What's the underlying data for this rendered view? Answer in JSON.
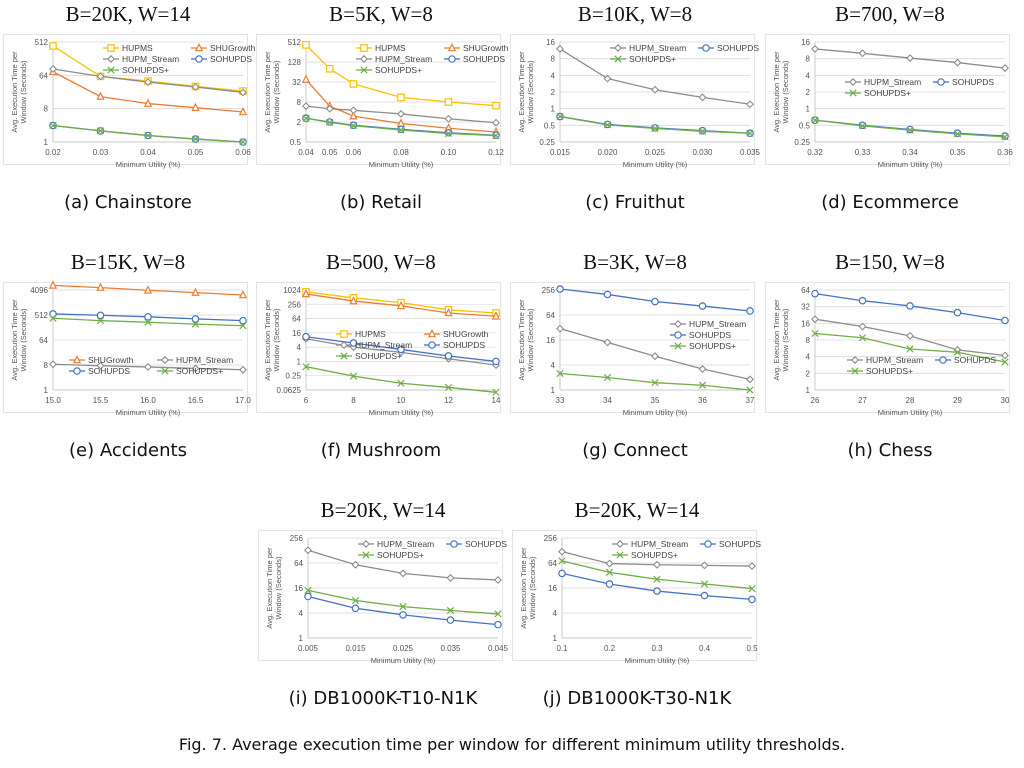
{
  "figure_caption": "Fig. 7.  Average execution time per window for different minimum utility thresholds.",
  "series_styles": {
    "HUPMS": {
      "color": "#FFC000",
      "marker": "square"
    },
    "SHUGrowth": {
      "color": "#ED7D31",
      "marker": "triangle"
    },
    "HUPM_Stream": {
      "color": "#8C8C8C",
      "marker": "diamond"
    },
    "SOHUPDS": {
      "color": "#4472C4",
      "marker": "circle"
    },
    "SOHUPDS+": {
      "color": "#70AD47",
      "marker": "x"
    }
  },
  "panels": [
    {
      "title": "B=20K, W=14",
      "caption": "(a) Chainstore"
    },
    {
      "title": "B=5K, W=8",
      "caption": "(b) Retail"
    },
    {
      "title": "B=10K, W=8",
      "caption": "(c) Fruithut"
    },
    {
      "title": "B=700, W=8",
      "caption": "(d) Ecommerce"
    },
    {
      "title": "B=15K, W=8",
      "caption": "(e) Accidents"
    },
    {
      "title": "B=500, W=8",
      "caption": "(f) Mushroom"
    },
    {
      "title": "B=3K, W=8",
      "caption": "(g) Connect"
    },
    {
      "title": "B=150, W=8",
      "caption": "(h) Chess"
    },
    {
      "title": "B=20K, W=14",
      "caption": "(i) DB1000K-T10-N1K"
    },
    {
      "title": "B=20K, W=14",
      "caption": "(j) DB1000K-T30-N1K"
    }
  ],
  "chart_data": [
    {
      "type": "line",
      "yscale": "log2",
      "xlabel": "Minimum Utility (%)",
      "ylabel": "Avg. Execution Time per Window (Seconds)",
      "categories": [
        "0.02",
        "0.03",
        "0.04",
        "0.05",
        "0.06"
      ],
      "yticks": [
        "1",
        "8",
        "64",
        "512"
      ],
      "ylim": [
        1,
        512
      ],
      "grid": true,
      "legend": {
        "placement": "top-right",
        "columns": 2,
        "order": [
          "HUPMS",
          "SHUGrowth",
          "HUPM_Stream",
          "SOHUPDS",
          "SOHUPDS+"
        ]
      },
      "series": [
        {
          "name": "HUPMS",
          "values": [
            400,
            60,
            45,
            32,
            24
          ]
        },
        {
          "name": "SHUGrowth",
          "values": [
            80,
            17,
            11,
            8.5,
            6.5
          ]
        },
        {
          "name": "HUPM_Stream",
          "values": [
            95,
            60,
            42,
            31,
            22
          ]
        },
        {
          "name": "SOHUPDS",
          "values": [
            2.8,
            2.0,
            1.5,
            1.2,
            1.0
          ]
        },
        {
          "name": "SOHUPDS+",
          "values": [
            2.8,
            2.0,
            1.5,
            1.2,
            1.0
          ]
        }
      ]
    },
    {
      "type": "line",
      "yscale": "log2",
      "xlabel": "Minimum Utility (%)",
      "ylabel": "Avg. Execution Time per Window (Seconds)",
      "categories": [
        "0.04",
        "0.05",
        "0.06",
        "0.08",
        "0.10",
        "0.12"
      ],
      "xvalues": [
        0.04,
        0.05,
        0.06,
        0.08,
        0.1,
        0.12
      ],
      "yticks": [
        "0.5",
        "2",
        "8",
        "32",
        "128",
        "512"
      ],
      "ylim": [
        0.5,
        512
      ],
      "grid": true,
      "legend": {
        "placement": "top-right",
        "columns": 2,
        "order": [
          "HUPMS",
          "SHUGrowth",
          "HUPM_Stream",
          "SOHUPDS",
          "SOHUPDS+"
        ]
      },
      "series": [
        {
          "name": "HUPMS",
          "values": [
            420,
            80,
            28,
            11,
            8,
            6.2
          ]
        },
        {
          "name": "SHUGrowth",
          "values": [
            38,
            6,
            3,
            1.8,
            1.3,
            1.0
          ]
        },
        {
          "name": "HUPM_Stream",
          "values": [
            6,
            5,
            4.5,
            3.5,
            2.5,
            1.9
          ]
        },
        {
          "name": "SOHUPDS",
          "values": [
            2.6,
            2.0,
            1.6,
            1.2,
            0.95,
            0.8
          ]
        },
        {
          "name": "SOHUPDS+",
          "values": [
            2.6,
            1.95,
            1.55,
            1.15,
            0.9,
            0.78
          ]
        }
      ]
    },
    {
      "type": "line",
      "yscale": "log2",
      "xlabel": "Minimum Utility (%)",
      "ylabel": "Avg. Execution Time per Window (Seconds)",
      "categories": [
        "0.015",
        "0.020",
        "0.025",
        "0.030",
        "0.035"
      ],
      "yticks": [
        "0.25",
        "0.5",
        "1",
        "2",
        "4",
        "8",
        "16"
      ],
      "ylim": [
        0.25,
        16
      ],
      "grid": true,
      "legend": {
        "placement": "top-right",
        "columns": 2,
        "order": [
          "HUPM_Stream",
          "SOHUPDS",
          "SOHUPDS+"
        ]
      },
      "series": [
        {
          "name": "HUPM_Stream",
          "values": [
            12,
            3.5,
            2.2,
            1.6,
            1.2
          ]
        },
        {
          "name": "SOHUPDS",
          "values": [
            0.72,
            0.52,
            0.45,
            0.4,
            0.36
          ]
        },
        {
          "name": "SOHUPDS+",
          "values": [
            0.72,
            0.51,
            0.44,
            0.39,
            0.36
          ]
        }
      ]
    },
    {
      "type": "line",
      "yscale": "log2",
      "xlabel": "Minimum Utility (%)",
      "ylabel": "Avg. Execution Time per Window (Seconds)",
      "categories": [
        "0.32",
        "0.33",
        "0.34",
        "0.35",
        "0.36"
      ],
      "yticks": [
        "0.25",
        "0.5",
        "1",
        "2",
        "4",
        "8",
        "16"
      ],
      "ylim": [
        0.25,
        16
      ],
      "grid": true,
      "legend": {
        "placement": "center",
        "columns": 2,
        "order": [
          "HUPM_Stream",
          "SOHUPDS",
          "SOHUPDS+"
        ]
      },
      "series": [
        {
          "name": "HUPM_Stream",
          "values": [
            12,
            10,
            8.2,
            6.8,
            5.4
          ]
        },
        {
          "name": "SOHUPDS",
          "values": [
            0.62,
            0.5,
            0.42,
            0.36,
            0.32
          ]
        },
        {
          "name": "SOHUPDS+",
          "values": [
            0.62,
            0.49,
            0.41,
            0.35,
            0.31
          ]
        }
      ]
    },
    {
      "type": "line",
      "yscale": "log2",
      "xlabel": "Minimum Utility (%)",
      "ylabel": "Avg. Execution Time per Window (Seconds)",
      "categories": [
        "15.0",
        "15.5",
        "16.0",
        "16.5",
        "17.0"
      ],
      "yticks": [
        "1",
        "8",
        "64",
        "512",
        "4096"
      ],
      "ylim": [
        1,
        4096
      ],
      "grid": true,
      "legend": {
        "placement": "bottom",
        "columns": 2,
        "order": [
          "SHUGrowth",
          "HUPM_Stream",
          "SOHUPDS",
          "SOHUPDS+"
        ]
      },
      "series": [
        {
          "name": "SHUGrowth",
          "values": [
            6000,
            5000,
            4000,
            3300,
            2700
          ]
        },
        {
          "name": "HUPM_Stream",
          "values": [
            8.5,
            7.5,
            6.8,
            6.0,
            5.4
          ]
        },
        {
          "name": "SOHUPDS",
          "values": [
            560,
            500,
            440,
            370,
            320
          ]
        },
        {
          "name": "SOHUPDS+",
          "values": [
            390,
            320,
            280,
            240,
            210
          ]
        }
      ]
    },
    {
      "type": "line",
      "yscale": "log2",
      "xlabel": "Minimum Utility (%)",
      "ylabel": "Avg. Execution Time per Window (Seconds)",
      "categories": [
        "6",
        "8",
        "10",
        "12",
        "14"
      ],
      "yticks": [
        "0.0625",
        "0.25",
        "1",
        "4",
        "16",
        "64",
        "256",
        "1024"
      ],
      "ylim": [
        0.0625,
        1024
      ],
      "grid": true,
      "legend": {
        "placement": "center",
        "columns": 2,
        "order": [
          "HUPMS",
          "SHUGrowth",
          "HUPM_Stream",
          "SOHUPDS",
          "SOHUPDS+"
        ]
      },
      "series": [
        {
          "name": "HUPMS",
          "values": [
            850,
            480,
            300,
            150,
            110
          ]
        },
        {
          "name": "SHUGrowth",
          "values": [
            700,
            350,
            220,
            110,
            80
          ]
        },
        {
          "name": "HUPM_Stream",
          "values": [
            9,
            4,
            2.4,
            1.3,
            0.7
          ]
        },
        {
          "name": "SOHUPDS",
          "values": [
            11,
            6,
            3.2,
            1.7,
            1.0
          ]
        },
        {
          "name": "SOHUPDS+",
          "values": [
            0.6,
            0.24,
            0.12,
            0.08,
            0.05
          ]
        }
      ]
    },
    {
      "type": "line",
      "yscale": "log2",
      "xlabel": "Minimum Utility (%)",
      "ylabel": "Avg. Execution Time per Window (Seconds)",
      "categories": [
        "33",
        "34",
        "35",
        "36",
        "37"
      ],
      "yticks": [
        "1",
        "4",
        "16",
        "64",
        "256"
      ],
      "ylim": [
        1,
        256
      ],
      "grid": true,
      "legend": {
        "placement": "right",
        "columns": 1,
        "order": [
          "HUPM_Stream",
          "SOHUPDS",
          "SOHUPDS+"
        ]
      },
      "series": [
        {
          "name": "HUPM_Stream",
          "values": [
            30,
            14,
            6.5,
            3.2,
            1.8
          ]
        },
        {
          "name": "SOHUPDS",
          "values": [
            270,
            200,
            135,
            105,
            80
          ]
        },
        {
          "name": "SOHUPDS+",
          "values": [
            2.5,
            2.0,
            1.5,
            1.3,
            1.0
          ]
        }
      ]
    },
    {
      "type": "line",
      "yscale": "log2",
      "xlabel": "Minimum Utility (%)",
      "ylabel": "Avg. Execution Time per Window (Seconds)",
      "categories": [
        "26",
        "27",
        "28",
        "29",
        "30"
      ],
      "yticks": [
        "1",
        "2",
        "4",
        "8",
        "16",
        "32",
        "64"
      ],
      "ylim": [
        1,
        64
      ],
      "grid": true,
      "legend": {
        "placement": "bottom-left",
        "columns": 2,
        "order": [
          "HUPM_Stream",
          "SOHUPDS",
          "SOHUPDS+"
        ]
      },
      "series": [
        {
          "name": "HUPM_Stream",
          "values": [
            19,
            14,
            9.5,
            5.3,
            4.2
          ]
        },
        {
          "name": "SOHUPDS",
          "values": [
            55,
            41,
            33,
            25,
            18
          ]
        },
        {
          "name": "SOHUPDS+",
          "values": [
            10.5,
            8.8,
            5.5,
            4.8,
            3.2
          ]
        }
      ]
    },
    {
      "type": "line",
      "yscale": "log2",
      "xlabel": "Minimum Utility (%)",
      "ylabel": "Avg. Execution Time per Window (Seconds)",
      "categories": [
        "0.005",
        "0.015",
        "0.025",
        "0.035",
        "0.045"
      ],
      "yticks": [
        "1",
        "4",
        "16",
        "64",
        "256"
      ],
      "ylim": [
        1,
        256
      ],
      "grid": true,
      "legend": {
        "placement": "top-right",
        "columns": 2,
        "order": [
          "HUPM_Stream",
          "SOHUPDS",
          "SOHUPDS+"
        ]
      },
      "series": [
        {
          "name": "HUPM_Stream",
          "values": [
            130,
            58,
            36,
            28,
            25
          ]
        },
        {
          "name": "SOHUPDS",
          "values": [
            10,
            5.2,
            3.6,
            2.7,
            2.1
          ]
        },
        {
          "name": "SOHUPDS+",
          "values": [
            14,
            8,
            5.7,
            4.6,
            3.8
          ]
        }
      ]
    },
    {
      "type": "line",
      "yscale": "log2",
      "xlabel": "Minimum Utility (%)",
      "ylabel": "Avg. Execution Time per Window (Seconds)",
      "categories": [
        "0.1",
        "0.2",
        "0.3",
        "0.4",
        "0.5"
      ],
      "yticks": [
        "1",
        "4",
        "16",
        "64",
        "256"
      ],
      "ylim": [
        1,
        256
      ],
      "grid": true,
      "legend": {
        "placement": "top-right",
        "columns": 2,
        "order": [
          "HUPM_Stream",
          "SOHUPDS",
          "SOHUPDS+"
        ]
      },
      "series": [
        {
          "name": "HUPM_Stream",
          "values": [
            120,
            62,
            58,
            56,
            54
          ]
        },
        {
          "name": "SOHUPDS",
          "values": [
            36,
            20,
            13.5,
            10.5,
            8.5
          ]
        },
        {
          "name": "SOHUPDS+",
          "values": [
            72,
            38,
            26,
            20,
            15.5
          ]
        }
      ]
    }
  ]
}
